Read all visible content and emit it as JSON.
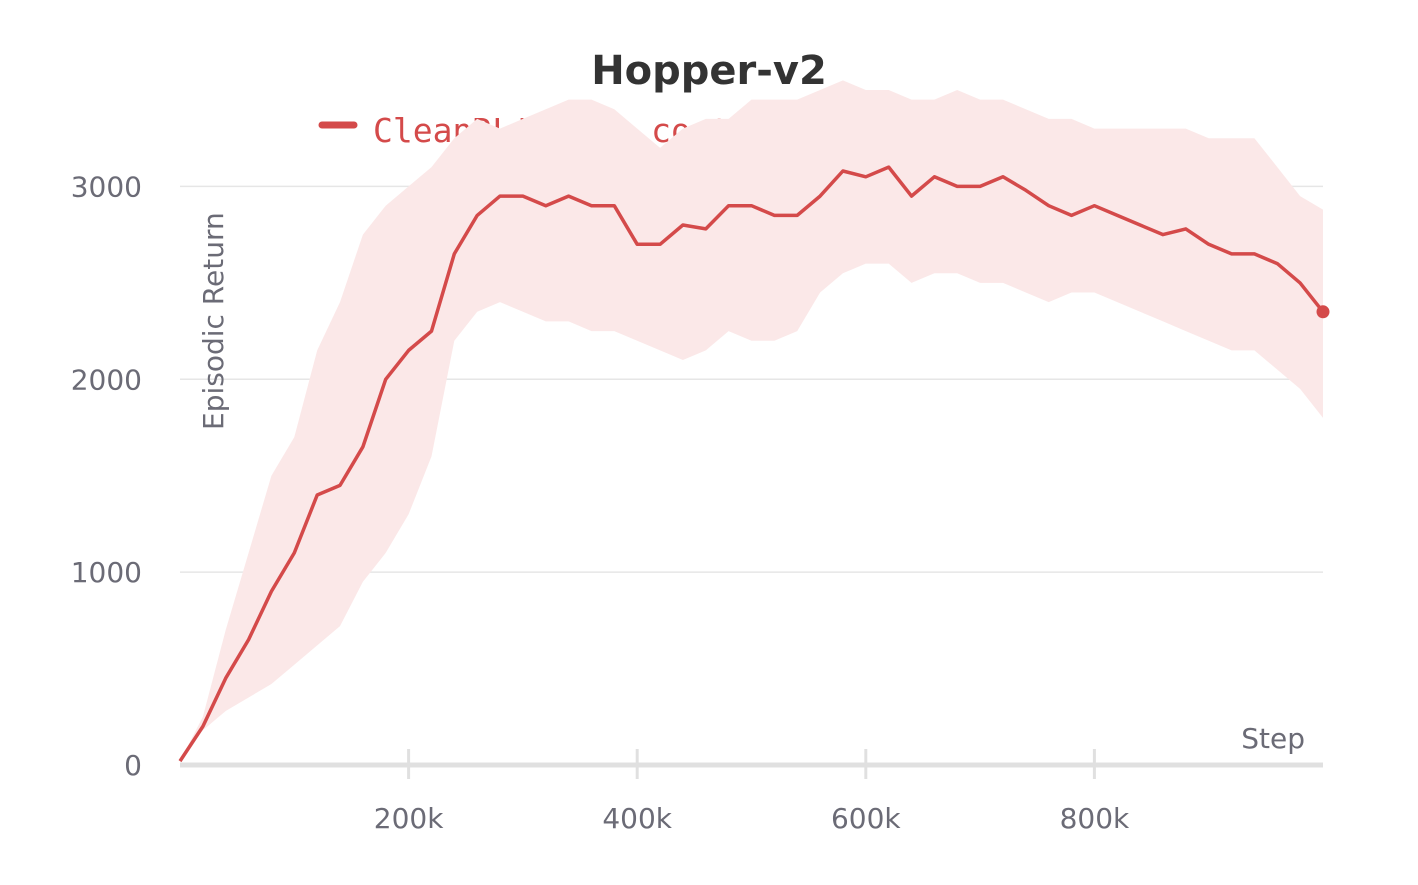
{
  "chart_data": {
    "type": "line",
    "title": "Hopper-v2",
    "xlabel": "Step",
    "ylabel": "Episodic Return",
    "xlim": [
      0,
      1000000
    ],
    "ylim": [
      0,
      3500
    ],
    "x_ticks": [
      200000,
      400000,
      600000,
      800000
    ],
    "x_tick_labels": [
      "200k",
      "400k",
      "600k",
      "800k"
    ],
    "y_ticks": [
      0,
      1000,
      2000,
      3000
    ],
    "y_tick_labels": [
      "0",
      "1000",
      "2000",
      "3000"
    ],
    "grid": true,
    "legend_position": "top",
    "colors": {
      "line": "#d44a4a",
      "band": "#fbe8e8",
      "grid": "#e6e6e6",
      "axis": "#e0e0e0"
    },
    "series": [
      {
        "name": "CleanRL's sac_continuous_action.py",
        "x": [
          0,
          20000,
          40000,
          60000,
          80000,
          100000,
          120000,
          140000,
          160000,
          180000,
          200000,
          220000,
          240000,
          260000,
          280000,
          300000,
          320000,
          340000,
          360000,
          380000,
          400000,
          420000,
          440000,
          460000,
          480000,
          500000,
          520000,
          540000,
          560000,
          580000,
          600000,
          620000,
          640000,
          660000,
          680000,
          700000,
          720000,
          740000,
          760000,
          780000,
          800000,
          820000,
          840000,
          860000,
          880000,
          900000,
          920000,
          940000,
          960000,
          980000,
          1000000
        ],
        "y": [
          20,
          200,
          450,
          650,
          900,
          1100,
          1400,
          1450,
          1650,
          2000,
          2150,
          2250,
          2650,
          2850,
          2950,
          2950,
          2900,
          2950,
          2900,
          2900,
          2700,
          2700,
          2800,
          2780,
          2900,
          2900,
          2850,
          2850,
          2950,
          3080,
          3050,
          3100,
          2950,
          3050,
          3000,
          3000,
          3050,
          2980,
          2900,
          2850,
          2900,
          2850,
          2800,
          2750,
          2780,
          2700,
          2650,
          2650,
          2600,
          2500,
          2350
        ],
        "y_lower": [
          20,
          180,
          280,
          350,
          420,
          520,
          620,
          720,
          950,
          1100,
          1300,
          1600,
          2200,
          2350,
          2400,
          2350,
          2300,
          2300,
          2250,
          2250,
          2200,
          2150,
          2100,
          2150,
          2250,
          2200,
          2200,
          2250,
          2450,
          2550,
          2600,
          2600,
          2500,
          2550,
          2550,
          2500,
          2500,
          2450,
          2400,
          2450,
          2450,
          2400,
          2350,
          2300,
          2250,
          2200,
          2150,
          2150,
          2050,
          1950,
          1800
        ],
        "y_upper": [
          20,
          250,
          700,
          1100,
          1500,
          1700,
          2150,
          2400,
          2750,
          2900,
          3000,
          3100,
          3250,
          3350,
          3300,
          3350,
          3400,
          3450,
          3450,
          3400,
          3300,
          3200,
          3300,
          3350,
          3350,
          3450,
          3450,
          3450,
          3500,
          3550,
          3500,
          3500,
          3450,
          3450,
          3500,
          3450,
          3450,
          3400,
          3350,
          3350,
          3300,
          3300,
          3300,
          3300,
          3300,
          3250,
          3250,
          3250,
          3100,
          2950,
          2880
        ]
      }
    ]
  }
}
